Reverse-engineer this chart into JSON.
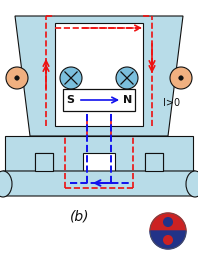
{
  "bg_color": "#cce8f0",
  "white": "#ffffff",
  "body_fill": "#b8dce8",
  "dark_fill": "#d0e8f0",
  "red": "#ee1111",
  "blue": "#1111ee",
  "black": "#111111",
  "coil_fill": "#7bbfdd",
  "dot_fill": "#f0b080",
  "title": "(b)",
  "label_I": "I>0",
  "label_SN": "S",
  "label_N": "N"
}
